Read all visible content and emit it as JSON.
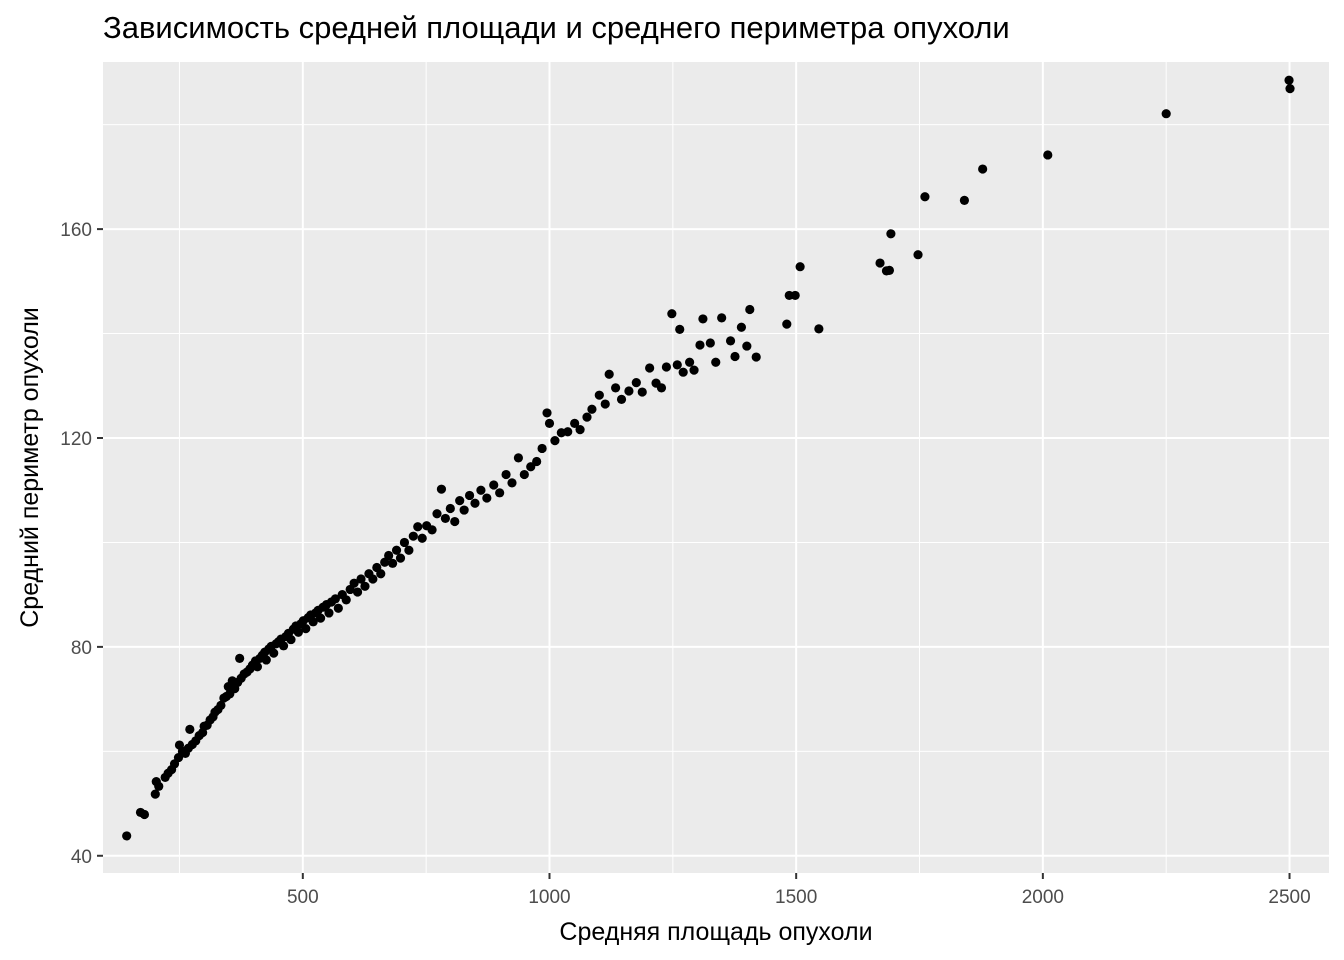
{
  "chart_data": {
    "type": "scatter",
    "title": "Зависимость средней площади и среднего периметра опухоли",
    "xlabel": "Средняя площадь опухоли",
    "ylabel": "Средний периметр опухоли",
    "xlim": [
      95,
      2580
    ],
    "ylim": [
      36.7,
      192
    ],
    "x_ticks": [
      500,
      1000,
      1500,
      2000,
      2500
    ],
    "y_ticks": [
      40,
      80,
      120,
      160
    ],
    "grid": true,
    "legend": "none",
    "point_color": "#000000",
    "panel_background": "#ebebeb",
    "grid_color": "#ffffff",
    "points": [
      [
        143,
        43.8
      ],
      [
        171,
        48.3
      ],
      [
        179,
        47.9
      ],
      [
        201,
        51.8
      ],
      [
        203,
        54.2
      ],
      [
        208,
        53.3
      ],
      [
        221,
        55.0
      ],
      [
        227,
        55.8
      ],
      [
        234,
        56.5
      ],
      [
        240,
        57.6
      ],
      [
        248,
        58.8
      ],
      [
        250,
        61.2
      ],
      [
        256,
        60.0
      ],
      [
        262,
        59.6
      ],
      [
        268,
        60.6
      ],
      [
        271,
        64.2
      ],
      [
        276,
        61.3
      ],
      [
        283,
        62.0
      ],
      [
        290,
        63.0
      ],
      [
        297,
        63.6
      ],
      [
        300,
        64.8
      ],
      [
        306,
        65.0
      ],
      [
        312,
        66.0
      ],
      [
        318,
        66.6
      ],
      [
        322,
        67.5
      ],
      [
        328,
        68.0
      ],
      [
        334,
        68.8
      ],
      [
        340,
        70.2
      ],
      [
        345,
        70.5
      ],
      [
        349,
        72.4
      ],
      [
        352,
        71.0
      ],
      [
        357,
        73.5
      ],
      [
        362,
        72.0
      ],
      [
        368,
        73.2
      ],
      [
        372,
        77.8
      ],
      [
        375,
        74.0
      ],
      [
        381,
        74.8
      ],
      [
        387,
        75.2
      ],
      [
        393,
        75.8
      ],
      [
        398,
        76.5
      ],
      [
        404,
        77.3
      ],
      [
        408,
        76.2
      ],
      [
        413,
        77.8
      ],
      [
        418,
        78.4
      ],
      [
        423,
        79.0
      ],
      [
        426,
        77.5
      ],
      [
        431,
        79.6
      ],
      [
        436,
        80.1
      ],
      [
        441,
        78.8
      ],
      [
        446,
        80.6
      ],
      [
        451,
        81.0
      ],
      [
        456,
        81.5
      ],
      [
        461,
        80.2
      ],
      [
        466,
        82.0
      ],
      [
        471,
        82.6
      ],
      [
        476,
        81.4
      ],
      [
        481,
        83.4
      ],
      [
        486,
        84.0
      ],
      [
        491,
        82.8
      ],
      [
        496,
        84.4
      ],
      [
        501,
        85.0
      ],
      [
        506,
        83.5
      ],
      [
        511,
        85.6
      ],
      [
        516,
        86.1
      ],
      [
        521,
        84.8
      ],
      [
        526,
        86.5
      ],
      [
        531,
        87.0
      ],
      [
        536,
        85.5
      ],
      [
        541,
        87.6
      ],
      [
        548,
        88.1
      ],
      [
        553,
        86.5
      ],
      [
        558,
        88.6
      ],
      [
        566,
        89.2
      ],
      [
        572,
        87.4
      ],
      [
        580,
        90.0
      ],
      [
        588,
        89.0
      ],
      [
        596,
        91.0
      ],
      [
        604,
        92.2
      ],
      [
        611,
        90.5
      ],
      [
        618,
        93.0
      ],
      [
        626,
        91.6
      ],
      [
        634,
        94.0
      ],
      [
        642,
        93.0
      ],
      [
        650,
        95.2
      ],
      [
        658,
        94.0
      ],
      [
        666,
        96.2
      ],
      [
        674,
        97.5
      ],
      [
        682,
        96.0
      ],
      [
        690,
        98.5
      ],
      [
        698,
        97.0
      ],
      [
        706,
        100.0
      ],
      [
        715,
        98.5
      ],
      [
        724,
        101.2
      ],
      [
        733,
        103.0
      ],
      [
        742,
        100.8
      ],
      [
        751,
        103.2
      ],
      [
        762,
        102.4
      ],
      [
        772,
        105.5
      ],
      [
        781,
        110.2
      ],
      [
        789,
        104.6
      ],
      [
        799,
        106.5
      ],
      [
        808,
        104.0
      ],
      [
        818,
        108.0
      ],
      [
        827,
        106.2
      ],
      [
        838,
        109.0
      ],
      [
        849,
        107.5
      ],
      [
        861,
        110.0
      ],
      [
        873,
        108.5
      ],
      [
        887,
        111.0
      ],
      [
        899,
        109.5
      ],
      [
        912,
        113.0
      ],
      [
        924,
        111.4
      ],
      [
        937,
        116.2
      ],
      [
        949,
        113.0
      ],
      [
        962,
        114.5
      ],
      [
        974,
        115.5
      ],
      [
        985,
        118.0
      ],
      [
        995,
        124.8
      ],
      [
        1000,
        122.8
      ],
      [
        1011,
        119.5
      ],
      [
        1024,
        121.0
      ],
      [
        1037,
        121.2
      ],
      [
        1051,
        122.8
      ],
      [
        1062,
        121.6
      ],
      [
        1076,
        124.0
      ],
      [
        1086,
        125.5
      ],
      [
        1101,
        128.2
      ],
      [
        1113,
        126.5
      ],
      [
        1121,
        132.2
      ],
      [
        1134,
        129.6
      ],
      [
        1146,
        127.4
      ],
      [
        1161,
        129.0
      ],
      [
        1176,
        130.6
      ],
      [
        1188,
        128.8
      ],
      [
        1203,
        133.4
      ],
      [
        1216,
        130.5
      ],
      [
        1227,
        129.6
      ],
      [
        1237,
        133.6
      ],
      [
        1248,
        143.8
      ],
      [
        1259,
        134.0
      ],
      [
        1264,
        140.8
      ],
      [
        1271,
        132.6
      ],
      [
        1284,
        134.5
      ],
      [
        1293,
        133.0
      ],
      [
        1305,
        137.8
      ],
      [
        1311,
        142.8
      ],
      [
        1326,
        138.2
      ],
      [
        1337,
        134.5
      ],
      [
        1349,
        143.0
      ],
      [
        1367,
        138.6
      ],
      [
        1376,
        135.6
      ],
      [
        1389,
        141.2
      ],
      [
        1400,
        137.6
      ],
      [
        1406,
        144.6
      ],
      [
        1419,
        135.5
      ],
      [
        1481,
        141.8
      ],
      [
        1486,
        147.3
      ],
      [
        1498,
        147.3
      ],
      [
        1508,
        152.8
      ],
      [
        1546,
        140.9
      ],
      [
        1670,
        153.5
      ],
      [
        1683,
        152.0
      ],
      [
        1689,
        152.1
      ],
      [
        1692,
        159.1
      ],
      [
        1747,
        155.1
      ],
      [
        1761,
        166.2
      ],
      [
        1841,
        165.5
      ],
      [
        1878,
        171.5
      ],
      [
        2010,
        174.2
      ],
      [
        2250,
        182.1
      ],
      [
        2499,
        188.5
      ],
      [
        2501,
        186.9
      ]
    ]
  }
}
